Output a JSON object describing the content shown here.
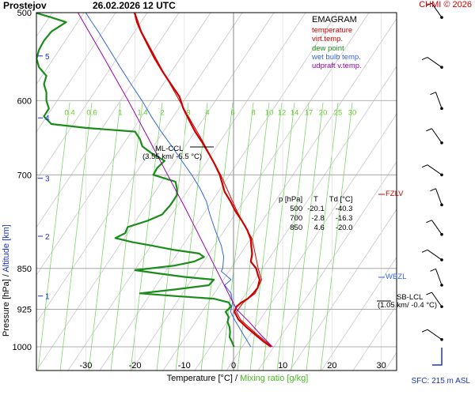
{
  "header": {
    "station": "Prostejov",
    "datetime": "26.02.2026 12 UTC",
    "credit": "CHMI © 2026"
  },
  "legend": {
    "title": "EMAGRAM",
    "items": [
      {
        "label": "temperature",
        "color": "#d00000"
      },
      {
        "label": "virt.temp.",
        "color": "#d00000"
      },
      {
        "label": "dew point",
        "color": "#1a8c1a"
      },
      {
        "label": "wet bulb temp.",
        "color": "#3366dd"
      },
      {
        "label": "udpraft v.temp.",
        "color": "#9900aa"
      }
    ]
  },
  "table": {
    "headers": [
      "p [hPa]",
      "T",
      "Td [°C]"
    ],
    "rows": [
      [
        "500",
        "-20.1",
        "-40.3"
      ],
      [
        "700",
        "-2.8",
        "-16.3"
      ],
      [
        "850",
        "4.6",
        "-20.0"
      ]
    ]
  },
  "annotations": {
    "ml_lcl_title": "ML-CCL",
    "ml_lcl_detail": "(3.55 km/ -5.5 °C)",
    "sb_lcl_title": "SB-LCL",
    "sb_lcl_detail": "(1.05 km/ -0.4 °C)",
    "fzlv": "FZLV",
    "wbzl": "WBZL"
  },
  "axes": {
    "x_label_temp": "Temperature [°C]",
    "x_label_sep": "/",
    "x_label_mix": "Mixing ratio [g/kg]",
    "y_label_pressure": "Pressure [hPa]",
    "y_label_sep": "/",
    "y_label_alt": "Altitude [km]",
    "sfc": "SFC: 215 m ASL"
  },
  "chart_data": {
    "type": "line",
    "title": "Prostejov 26.02.2026 12 UTC",
    "xlabel": "Temperature [°C] / Mixing ratio [g/kg]",
    "ylabel": "Pressure [hPa] / Altitude [km]",
    "xlim": [
      -40,
      33
    ],
    "ylim": [
      1010,
      500
    ],
    "x_ticks": [
      -30,
      -20,
      -10,
      0,
      10,
      20,
      30
    ],
    "p_ticks": [
      500,
      600,
      700,
      850,
      925,
      1000
    ],
    "alt_ticks": [
      {
        "km": "1",
        "p": 900
      },
      {
        "km": "2",
        "p": 795
      },
      {
        "km": "3",
        "p": 705
      },
      {
        "km": "4",
        "p": 622
      },
      {
        "km": "5",
        "p": 547
      }
    ],
    "mixing_ratio_labels": [
      "0.4",
      "0.6",
      "1",
      "1.4",
      "2",
      "3",
      "4",
      "6",
      "8",
      "10",
      "12",
      "14",
      "17",
      "20",
      "25",
      "30"
    ],
    "mixing_ratio_label_pressure": 615,
    "series": [
      {
        "name": "temperature",
        "color": "#d00000",
        "points": [
          [
            1000,
            7.6
          ],
          [
            990,
            6.2
          ],
          [
            975,
            4.4
          ],
          [
            960,
            2.6
          ],
          [
            945,
            1.0
          ],
          [
            930,
            0.2
          ],
          [
            920,
            0.6
          ],
          [
            912,
            1.6
          ],
          [
            905,
            2.9
          ],
          [
            895,
            4.0
          ],
          [
            885,
            4.9
          ],
          [
            870,
            5.3
          ],
          [
            860,
            4.9
          ],
          [
            850,
            4.6
          ],
          [
            838,
            3.5
          ],
          [
            825,
            3.8
          ],
          [
            812,
            3.6
          ],
          [
            800,
            3.5
          ],
          [
            785,
            2.8
          ],
          [
            770,
            1.7
          ],
          [
            755,
            0.4
          ],
          [
            740,
            -0.6
          ],
          [
            725,
            -1.8
          ],
          [
            710,
            -2.4
          ],
          [
            700,
            -2.8
          ],
          [
            685,
            -3.8
          ],
          [
            670,
            -5.0
          ],
          [
            655,
            -6.3
          ],
          [
            640,
            -7.8
          ],
          [
            625,
            -9.0
          ],
          [
            610,
            -10.2
          ],
          [
            595,
            -11.0
          ],
          [
            580,
            -12.7
          ],
          [
            565,
            -14.4
          ],
          [
            550,
            -16.0
          ],
          [
            535,
            -17.4
          ],
          [
            520,
            -18.8
          ],
          [
            510,
            -19.6
          ],
          [
            500,
            -20.1
          ]
        ]
      },
      {
        "name": "virt.temp.",
        "color": "#d00000",
        "points": [
          [
            1000,
            7.9
          ],
          [
            975,
            4.8
          ],
          [
            945,
            1.4
          ],
          [
            930,
            0.6
          ],
          [
            912,
            2.0
          ],
          [
            895,
            4.4
          ],
          [
            870,
            5.7
          ],
          [
            850,
            5.0
          ],
          [
            800,
            3.8
          ],
          [
            755,
            0.7
          ],
          [
            700,
            -2.6
          ],
          [
            655,
            -6.1
          ],
          [
            610,
            -10.1
          ],
          [
            565,
            -14.3
          ],
          [
            520,
            -18.7
          ],
          [
            500,
            -20.0
          ]
        ]
      },
      {
        "name": "dew point",
        "color": "#1a8c1a",
        "points": [
          [
            1000,
            0.1
          ],
          [
            990,
            -0.3
          ],
          [
            980,
            -0.8
          ],
          [
            970,
            -0.7
          ],
          [
            960,
            -0.8
          ],
          [
            950,
            -1.2
          ],
          [
            940,
            -1.0
          ],
          [
            930,
            -1.6
          ],
          [
            920,
            -0.5
          ],
          [
            912,
            -1.0
          ],
          [
            905,
            -4.0
          ],
          [
            900,
            -12.0
          ],
          [
            895,
            -19.0
          ],
          [
            888,
            -12.0
          ],
          [
            880,
            -5.0
          ],
          [
            870,
            -4.0
          ],
          [
            865,
            -10.0
          ],
          [
            858,
            -16.0
          ],
          [
            853,
            -20.0
          ],
          [
            845,
            -12.0
          ],
          [
            838,
            -8.0
          ],
          [
            830,
            -6.0
          ],
          [
            824,
            -7.0
          ],
          [
            818,
            -12.0
          ],
          [
            810,
            -17.0
          ],
          [
            805,
            -20.5
          ],
          [
            798,
            -24.0
          ],
          [
            790,
            -22.0
          ],
          [
            780,
            -21.5
          ],
          [
            770,
            -17.5
          ],
          [
            760,
            -14.5
          ],
          [
            745,
            -12.8
          ],
          [
            730,
            -11.5
          ],
          [
            720,
            -11.5
          ],
          [
            710,
            -11.8
          ],
          [
            700,
            -16.3
          ],
          [
            690,
            -15.5
          ],
          [
            680,
            -14.0
          ],
          [
            670,
            -16.5
          ],
          [
            660,
            -18.5
          ],
          [
            650,
            -19.0
          ],
          [
            640,
            -20.0
          ],
          [
            635,
            -30.0
          ],
          [
            630,
            -37.0
          ],
          [
            620,
            -38.5
          ],
          [
            610,
            -37.5
          ],
          [
            600,
            -38.0
          ],
          [
            590,
            -38.0
          ],
          [
            580,
            -38.5
          ],
          [
            570,
            -38.0
          ],
          [
            560,
            -39.5
          ],
          [
            550,
            -40.0
          ],
          [
            540,
            -39.5
          ],
          [
            530,
            -38.5
          ],
          [
            520,
            -37.0
          ],
          [
            510,
            -34.0
          ],
          [
            505,
            -37.0
          ],
          [
            500,
            -40.3
          ]
        ]
      },
      {
        "name": "wet bulb temp.",
        "color": "#3366dd",
        "points": [
          [
            1000,
            3.5
          ],
          [
            975,
            2.0
          ],
          [
            945,
            0.2
          ],
          [
            930,
            -0.6
          ],
          [
            912,
            -0.2
          ],
          [
            895,
            -0.5
          ],
          [
            880,
            -1.8
          ],
          [
            870,
            -0.5
          ],
          [
            855,
            -2.5
          ],
          [
            850,
            -2.2
          ],
          [
            830,
            -2.0
          ],
          [
            810,
            -2.5
          ],
          [
            790,
            -3.5
          ],
          [
            760,
            -4.8
          ],
          [
            740,
            -5.5
          ],
          [
            720,
            -6.8
          ],
          [
            700,
            -8.5
          ],
          [
            680,
            -10.5
          ],
          [
            660,
            -12.5
          ],
          [
            640,
            -14.7
          ],
          [
            620,
            -16.7
          ],
          [
            600,
            -18.6
          ],
          [
            580,
            -20.8
          ],
          [
            560,
            -23.0
          ],
          [
            540,
            -25.2
          ],
          [
            520,
            -27.5
          ],
          [
            505,
            -29.4
          ],
          [
            500,
            -30.0
          ]
        ]
      },
      {
        "name": "udpraft v.temp.",
        "color": "#9900aa",
        "points": [
          [
            1000,
            7.9
          ],
          [
            975,
            5.5
          ],
          [
            950,
            3.2
          ],
          [
            925,
            0.6
          ],
          [
            905,
            -0.5
          ],
          [
            850,
            -3.6
          ],
          [
            800,
            -6.6
          ],
          [
            750,
            -9.8
          ],
          [
            700,
            -13.4
          ],
          [
            650,
            -17.2
          ],
          [
            600,
            -21.4
          ],
          [
            550,
            -26.2
          ],
          [
            500,
            -31.6
          ]
        ]
      }
    ],
    "wind_pressures": [
      505,
      560,
      610,
      655,
      700,
      745,
      792,
      835,
      880,
      920,
      985
    ]
  }
}
